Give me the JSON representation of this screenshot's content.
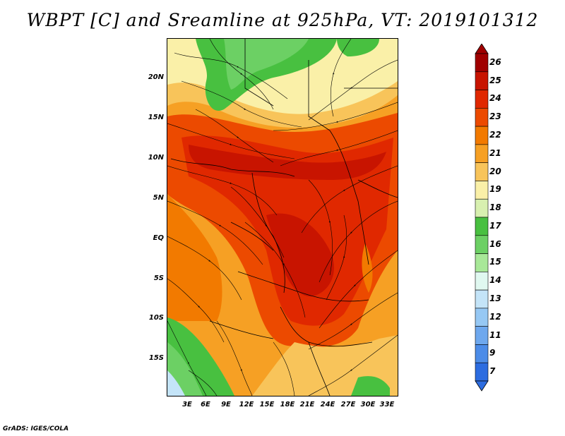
{
  "title": "WBPT [C] and Sreamline at 925hPa, VT: 2019101312",
  "credit": "GrADS: IGES/COLA",
  "y_axis": {
    "labels": [
      "20N",
      "15N",
      "10N",
      "5N",
      "EQ",
      "5S",
      "10S",
      "15S"
    ],
    "values": [
      20,
      15,
      10,
      5,
      0,
      -5,
      -10,
      -15
    ]
  },
  "x_axis": {
    "labels": [
      "3E",
      "6E",
      "9E",
      "12E",
      "15E",
      "18E",
      "21E",
      "24E",
      "27E",
      "30E",
      "33E"
    ],
    "values": [
      3,
      6,
      9,
      12,
      15,
      18,
      21,
      24,
      27,
      30,
      33
    ]
  },
  "map_extent": {
    "lon_min": 0,
    "lon_max": 35,
    "lat_min": -20,
    "lat_max": 24
  },
  "colorbar": {
    "labels": [
      "26",
      "25",
      "24",
      "23",
      "22",
      "21",
      "20",
      "19",
      "18",
      "17",
      "16",
      "15",
      "14",
      "13",
      "12",
      "11",
      "9",
      "7"
    ],
    "colors": [
      "#a00000",
      "#c81400",
      "#e02800",
      "#ec4a00",
      "#f27a00",
      "#f6a024",
      "#f8c45a",
      "#faf0a8",
      "#d8f0b0",
      "#48c040",
      "#6cd064",
      "#a8e898",
      "#e0f8f0",
      "#c4e4f8",
      "#96c8f4",
      "#6ea8ee",
      "#4c8ce8",
      "#2c6ce0"
    ]
  }
}
